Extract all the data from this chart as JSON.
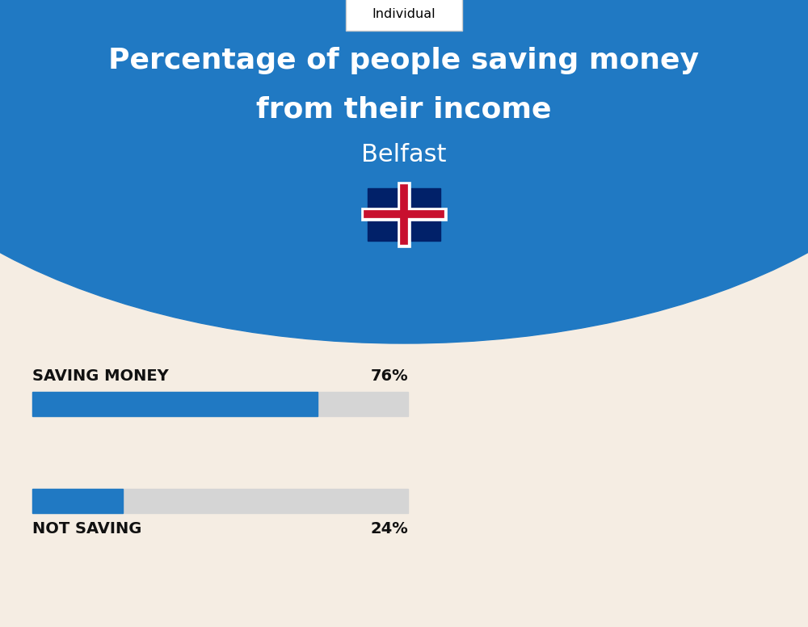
{
  "title_line1": "Percentage of people saving money",
  "title_line2": "from their income",
  "city": "Belfast",
  "tab_label": "Individual",
  "bg_color": "#F5EDE3",
  "blue_color": "#2079C3",
  "bar_bg_color": "#D5D5D5",
  "saving_label": "SAVING MONEY",
  "saving_value": 76,
  "saving_pct_text": "76%",
  "not_saving_label": "NOT SAVING",
  "not_saving_value": 24,
  "not_saving_pct_text": "24%",
  "title_color": "#FFFFFF",
  "city_color": "#FFFFFF",
  "label_color": "#111111",
  "tab_border_color": "#CCCCCC",
  "fig_width": 10.0,
  "fig_height": 7.76
}
